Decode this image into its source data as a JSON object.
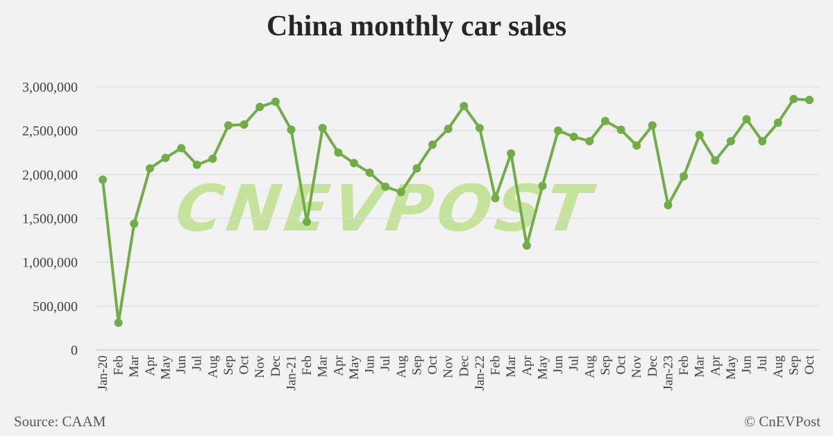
{
  "chart_data": {
    "type": "line",
    "title": "China monthly car sales",
    "xlabel": "",
    "ylabel": "",
    "ylim": [
      0,
      3000000
    ],
    "yticks": [
      "0",
      "500,000",
      "1,000,000",
      "1,500,000",
      "2,000,000",
      "2,500,000",
      "3,000,000"
    ],
    "grid": true,
    "legend": "none",
    "categories": [
      "Jan-20",
      "Feb",
      "Mar",
      "Apr",
      "May",
      "Jun",
      "Jul",
      "Aug",
      "Sep",
      "Oct",
      "Nov",
      "Dec",
      "Jan-21",
      "Feb",
      "Mar",
      "Apr",
      "May",
      "Jun",
      "Jul",
      "Aug",
      "Sep",
      "Oct",
      "Nov",
      "Dec",
      "Jan-22",
      "Feb",
      "Mar",
      "Apr",
      "May",
      "Jun",
      "Jul",
      "Aug",
      "Sep",
      "Oct",
      "Nov",
      "Dec",
      "Jan-23",
      "Feb",
      "Mar",
      "Apr",
      "May",
      "Jun",
      "Jul",
      "Aug",
      "Sep",
      "Oct"
    ],
    "values": [
      1940000,
      310000,
      1440000,
      2070000,
      2190000,
      2300000,
      2110000,
      2180000,
      2560000,
      2570000,
      2770000,
      2830000,
      2510000,
      1460000,
      2530000,
      2250000,
      2130000,
      2020000,
      1860000,
      1800000,
      2070000,
      2340000,
      2520000,
      2780000,
      2530000,
      1730000,
      2240000,
      1190000,
      1870000,
      2500000,
      2430000,
      2380000,
      2610000,
      2510000,
      2330000,
      2560000,
      1650000,
      1980000,
      2450000,
      2160000,
      2380000,
      2630000,
      2380000,
      2590000,
      2860000,
      2850000
    ],
    "color": "#70ad47"
  },
  "watermark": "CNEVPOST",
  "watermark_color": "#c5e39a",
  "footer": {
    "source": "Source: CAAM",
    "copyright": "© CnEVPost"
  }
}
